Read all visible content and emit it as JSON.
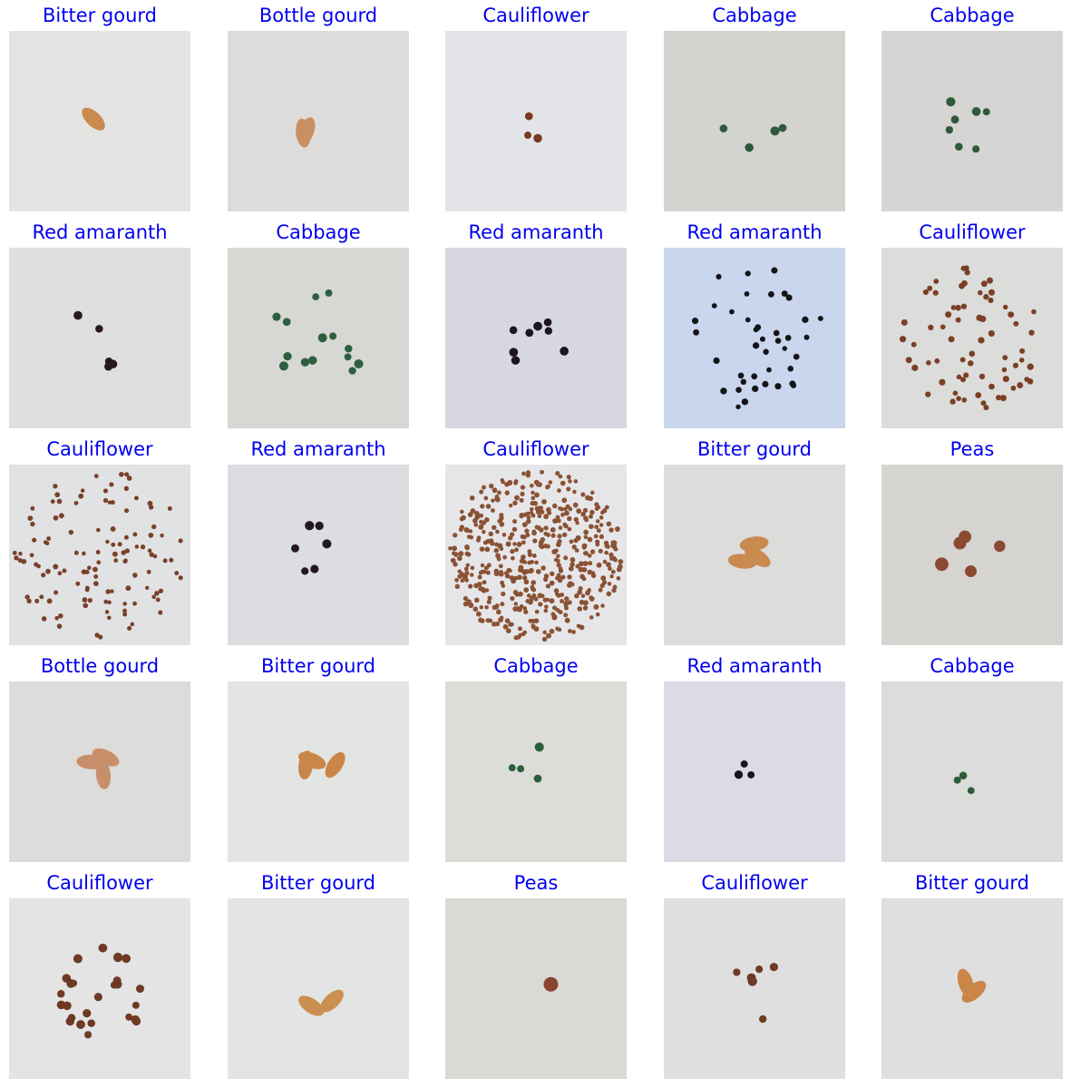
{
  "title_color": "#0000ee",
  "grid": [
    {
      "label": "Bitter gourd",
      "seed_icon": "bitter-gourd-seed-icon",
      "seed_count": 1,
      "background": "#e4e5e3",
      "seed_color": "#c98a4e"
    },
    {
      "label": "Bottle gourd",
      "seed_icon": "bottle-gourd-seed-icon",
      "seed_count": 2,
      "background": "#dedcda",
      "seed_color": "#c89062"
    },
    {
      "label": "Cauliflower",
      "seed_icon": "cauliflower-seed-icon",
      "seed_count": 3,
      "background": "#e3e4e7",
      "seed_color": "#7a3a22"
    },
    {
      "label": "Cabbage",
      "seed_icon": "cabbage-seed-icon",
      "seed_count": 4,
      "background": "#d3d3d0",
      "seed_color": "#2d5a3c"
    },
    {
      "label": "Cabbage",
      "seed_icon": "cabbage-seed-icon",
      "seed_count": 7,
      "background": "#d6d5d3",
      "seed_color": "#2f5a3a"
    },
    {
      "label": "Red amaranth",
      "seed_icon": "red-amaranth-seed-icon",
      "seed_count": 5,
      "background": "#dfdfe2",
      "seed_color": "#2a1820"
    },
    {
      "label": "Cabbage",
      "seed_icon": "cabbage-seed-icon",
      "seed_count": 14,
      "background": "#d7d8d4",
      "seed_color": "#2d5e40"
    },
    {
      "label": "Red amaranth",
      "seed_icon": "red-amaranth-seed-icon",
      "seed_count": 8,
      "background": "#d7d7e2",
      "seed_color": "#1e1420"
    },
    {
      "label": "Red amaranth",
      "seed_icon": "red-amaranth-seed-icon",
      "seed_count": 40,
      "background": "#c9d6ee",
      "seed_color": "#141418"
    },
    {
      "label": "Cauliflower",
      "seed_icon": "cauliflower-seed-icon",
      "seed_count": 70,
      "background": "#dcdcdb",
      "seed_color": "#7a3f24"
    },
    {
      "label": "Cauliflower",
      "seed_icon": "cauliflower-seed-icon",
      "seed_count": 120,
      "background": "#e1e2e4",
      "seed_color": "#7a4028"
    },
    {
      "label": "Red amaranth",
      "seed_icon": "red-amaranth-seed-icon",
      "seed_count": 6,
      "background": "#dcdde0",
      "seed_color": "#221820"
    },
    {
      "label": "Cauliflower",
      "seed_icon": "cauliflower-seed-icon",
      "seed_count": 500,
      "background": "#e6e6e9",
      "seed_color": "#8a5234"
    },
    {
      "label": "Bitter gourd",
      "seed_icon": "bitter-gourd-seed-icon",
      "seed_count": 3,
      "background": "#dcdcdb",
      "seed_color": "#c98a4e"
    },
    {
      "label": "Peas",
      "seed_icon": "peas-seed-icon",
      "seed_count": 5,
      "background": "#d6d4d1",
      "seed_color": "#8a4a32"
    },
    {
      "label": "Bottle gourd",
      "seed_icon": "bottle-gourd-seed-icon",
      "seed_count": 3,
      "background": "#dcdcda",
      "seed_color": "#c8906a"
    },
    {
      "label": "Bitter gourd",
      "seed_icon": "bitter-gourd-seed-icon",
      "seed_count": 3,
      "background": "#e3e5e3",
      "seed_color": "#c98648"
    },
    {
      "label": "Cabbage",
      "seed_icon": "cabbage-seed-icon",
      "seed_count": 4,
      "background": "#dcdcd9",
      "seed_color": "#2d5e3c"
    },
    {
      "label": "Red amaranth",
      "seed_icon": "red-amaranth-seed-icon",
      "seed_count": 3,
      "background": "#dadbe5",
      "seed_color": "#18141c"
    },
    {
      "label": "Cabbage",
      "seed_icon": "cabbage-seed-icon",
      "seed_count": 3,
      "background": "#dcdcda",
      "seed_color": "#2d5e3c"
    },
    {
      "label": "Cauliflower",
      "seed_icon": "cauliflower-seed-icon",
      "seed_count": 25,
      "background": "#e4e4e4",
      "seed_color": "#6e3a24"
    },
    {
      "label": "Bitter gourd",
      "seed_icon": "bitter-gourd-seed-icon",
      "seed_count": 2,
      "background": "#e2e5e3",
      "seed_color": "#cc8f52"
    },
    {
      "label": "Peas",
      "seed_icon": "peas-seed-icon",
      "seed_count": 1,
      "background": "#d9d9d6",
      "seed_color": "#8a4430"
    },
    {
      "label": "Cauliflower",
      "seed_icon": "cauliflower-seed-icon",
      "seed_count": 6,
      "background": "#dfdfdf",
      "seed_color": "#6e3a24"
    },
    {
      "label": "Bitter gourd",
      "seed_icon": "bitter-gourd-seed-icon",
      "seed_count": 2,
      "background": "#dedfde",
      "seed_color": "#c98648"
    }
  ]
}
